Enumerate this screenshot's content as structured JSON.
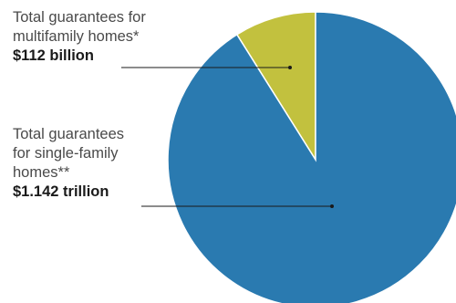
{
  "chart_data": {
    "type": "pie",
    "slices": [
      {
        "label_lines": [
          "Total guarantees for",
          "multifamily homes*"
        ],
        "value_text": "$112 billion",
        "value": 112,
        "unit": "billion",
        "color": "#c2c13e"
      },
      {
        "label_lines": [
          "Total guarantees",
          "for single-family",
          "homes**"
        ],
        "value_text": "$1.142 trillion",
        "value": 1142,
        "unit": "billion",
        "color": "#2a7ab0"
      }
    ],
    "legend": "none",
    "leader_color": "#1a1a1a"
  }
}
